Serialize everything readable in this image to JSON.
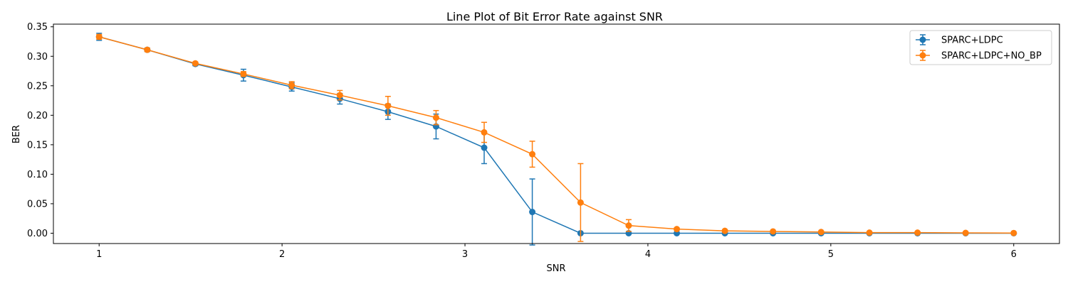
{
  "chart_data": {
    "type": "line",
    "title": "Line Plot of Bit Error Rate against SNR",
    "xlabel": "SNR",
    "ylabel": "BER",
    "xlim": [
      0.75,
      6.25
    ],
    "ylim": [
      -0.0175,
      0.3545
    ],
    "xticks": [
      1,
      2,
      3,
      4,
      5,
      6
    ],
    "yticks": [
      0.0,
      0.05,
      0.1,
      0.15,
      0.2,
      0.25,
      0.3,
      0.35
    ],
    "ytick_labels": [
      "0.00",
      "0.05",
      "0.10",
      "0.15",
      "0.20",
      "0.25",
      "0.30",
      "0.35"
    ],
    "xtick_labels": [
      "1",
      "2",
      "3",
      "4",
      "5",
      "6"
    ],
    "grid": false,
    "legend_position": "top-right",
    "x": [
      1.0,
      1.263,
      1.526,
      1.789,
      2.053,
      2.316,
      2.579,
      2.842,
      3.105,
      3.368,
      3.632,
      3.895,
      4.158,
      4.421,
      4.684,
      4.947,
      5.211,
      5.474,
      5.737,
      6.0
    ],
    "series": [
      {
        "name": "SPARC+LDPC",
        "color": "#1f77b4",
        "values": [
          0.333,
          0.311,
          0.287,
          0.268,
          0.248,
          0.228,
          0.206,
          0.181,
          0.145,
          0.036,
          0.0,
          0.0,
          0.0,
          0.0,
          0.0,
          0.0,
          0.0,
          0.0,
          0.0,
          0.0
        ],
        "errors": [
          0.006,
          0.003,
          0.003,
          0.01,
          0.007,
          0.009,
          0.013,
          0.021,
          0.027,
          0.056,
          0.0,
          0.0,
          0.0,
          0.0,
          0.0,
          0.0,
          0.0,
          0.0,
          0.0,
          0.0
        ]
      },
      {
        "name": "SPARC+LDPC+NO_BP",
        "color": "#ff7f0e",
        "values": [
          0.333,
          0.311,
          0.288,
          0.27,
          0.251,
          0.234,
          0.216,
          0.196,
          0.171,
          0.134,
          0.052,
          0.013,
          0.007,
          0.004,
          0.003,
          0.002,
          0.001,
          0.001,
          0.0005,
          0.0003
        ],
        "errors": [
          0.004,
          0.003,
          0.002,
          0.004,
          0.006,
          0.008,
          0.016,
          0.012,
          0.017,
          0.022,
          0.066,
          0.01,
          0.002,
          0.002,
          0.001,
          0.001,
          0.001,
          0.001,
          0.0005,
          0.0003
        ]
      }
    ]
  }
}
